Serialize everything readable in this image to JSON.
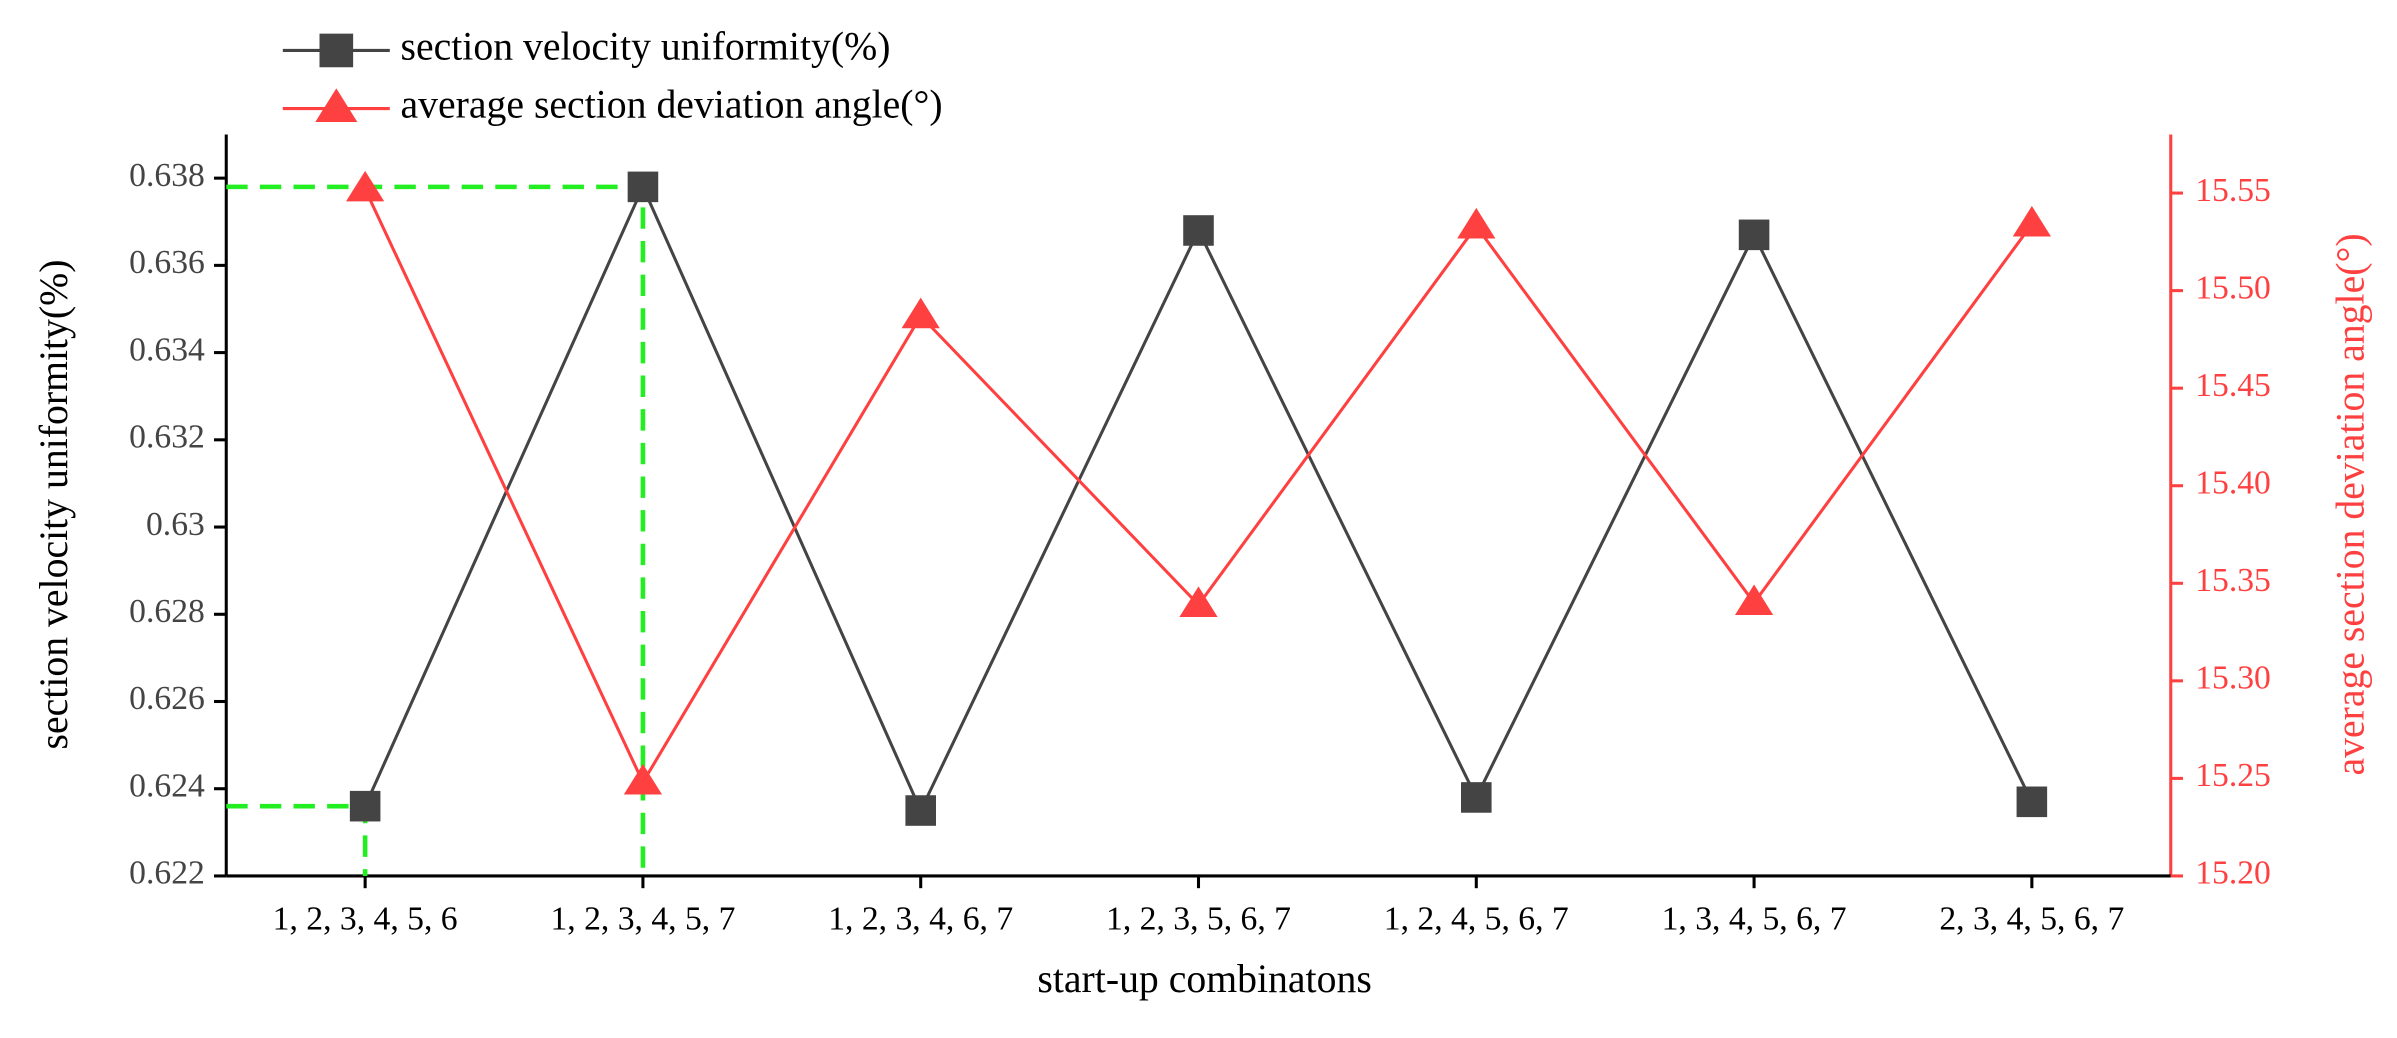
{
  "chart_data": {
    "type": "line",
    "x_label": "start-up combinatons",
    "y_label": "section velocity uniformity(%)",
    "y2_label": "average section deviation angle(°)",
    "categories": [
      "1, 2, 3, 4, 5, 6",
      "1, 2, 3, 4, 5, 7",
      "1, 2, 3, 4, 6, 7",
      "1, 2, 3, 5, 6, 7",
      "1, 2, 4, 5, 6, 7",
      "1, 3, 4, 5, 6, 7",
      "2, 3, 4, 5, 6, 7"
    ],
    "series": [
      {
        "name": "section velocity uniformity(%)",
        "color": "#444444",
        "marker": "square",
        "values": [
          0.6236,
          0.6378,
          0.6235,
          0.6368,
          0.6238,
          0.6367,
          0.6237
        ]
      },
      {
        "name": "average section deviation angle(°)",
        "color": "#ff4040",
        "marker": "triangle",
        "axis": "y2",
        "values": [
          15.552,
          15.248,
          15.487,
          15.339,
          15.533,
          15.34,
          15.534
        ]
      }
    ],
    "ylim": [
      0.622,
      0.639
    ],
    "yticks": [
      0.622,
      0.624,
      0.626,
      0.628,
      0.63,
      0.632,
      0.634,
      0.636,
      0.638
    ],
    "y2lim": [
      15.2,
      15.58
    ],
    "y2ticks": [
      {
        "value": 15.2,
        "label": "15.20"
      },
      {
        "value": 15.25,
        "label": "15.25"
      },
      {
        "value": 15.3,
        "label": "15.30"
      },
      {
        "value": 15.35,
        "label": "15.35"
      },
      {
        "value": 15.4,
        "label": "15.40"
      },
      {
        "value": 15.45,
        "label": "15.45"
      },
      {
        "value": 15.5,
        "label": "15.50"
      },
      {
        "value": 15.55,
        "label": "15.55"
      }
    ],
    "y2color": "#ff4040",
    "guide_color": "#22ee22"
  }
}
